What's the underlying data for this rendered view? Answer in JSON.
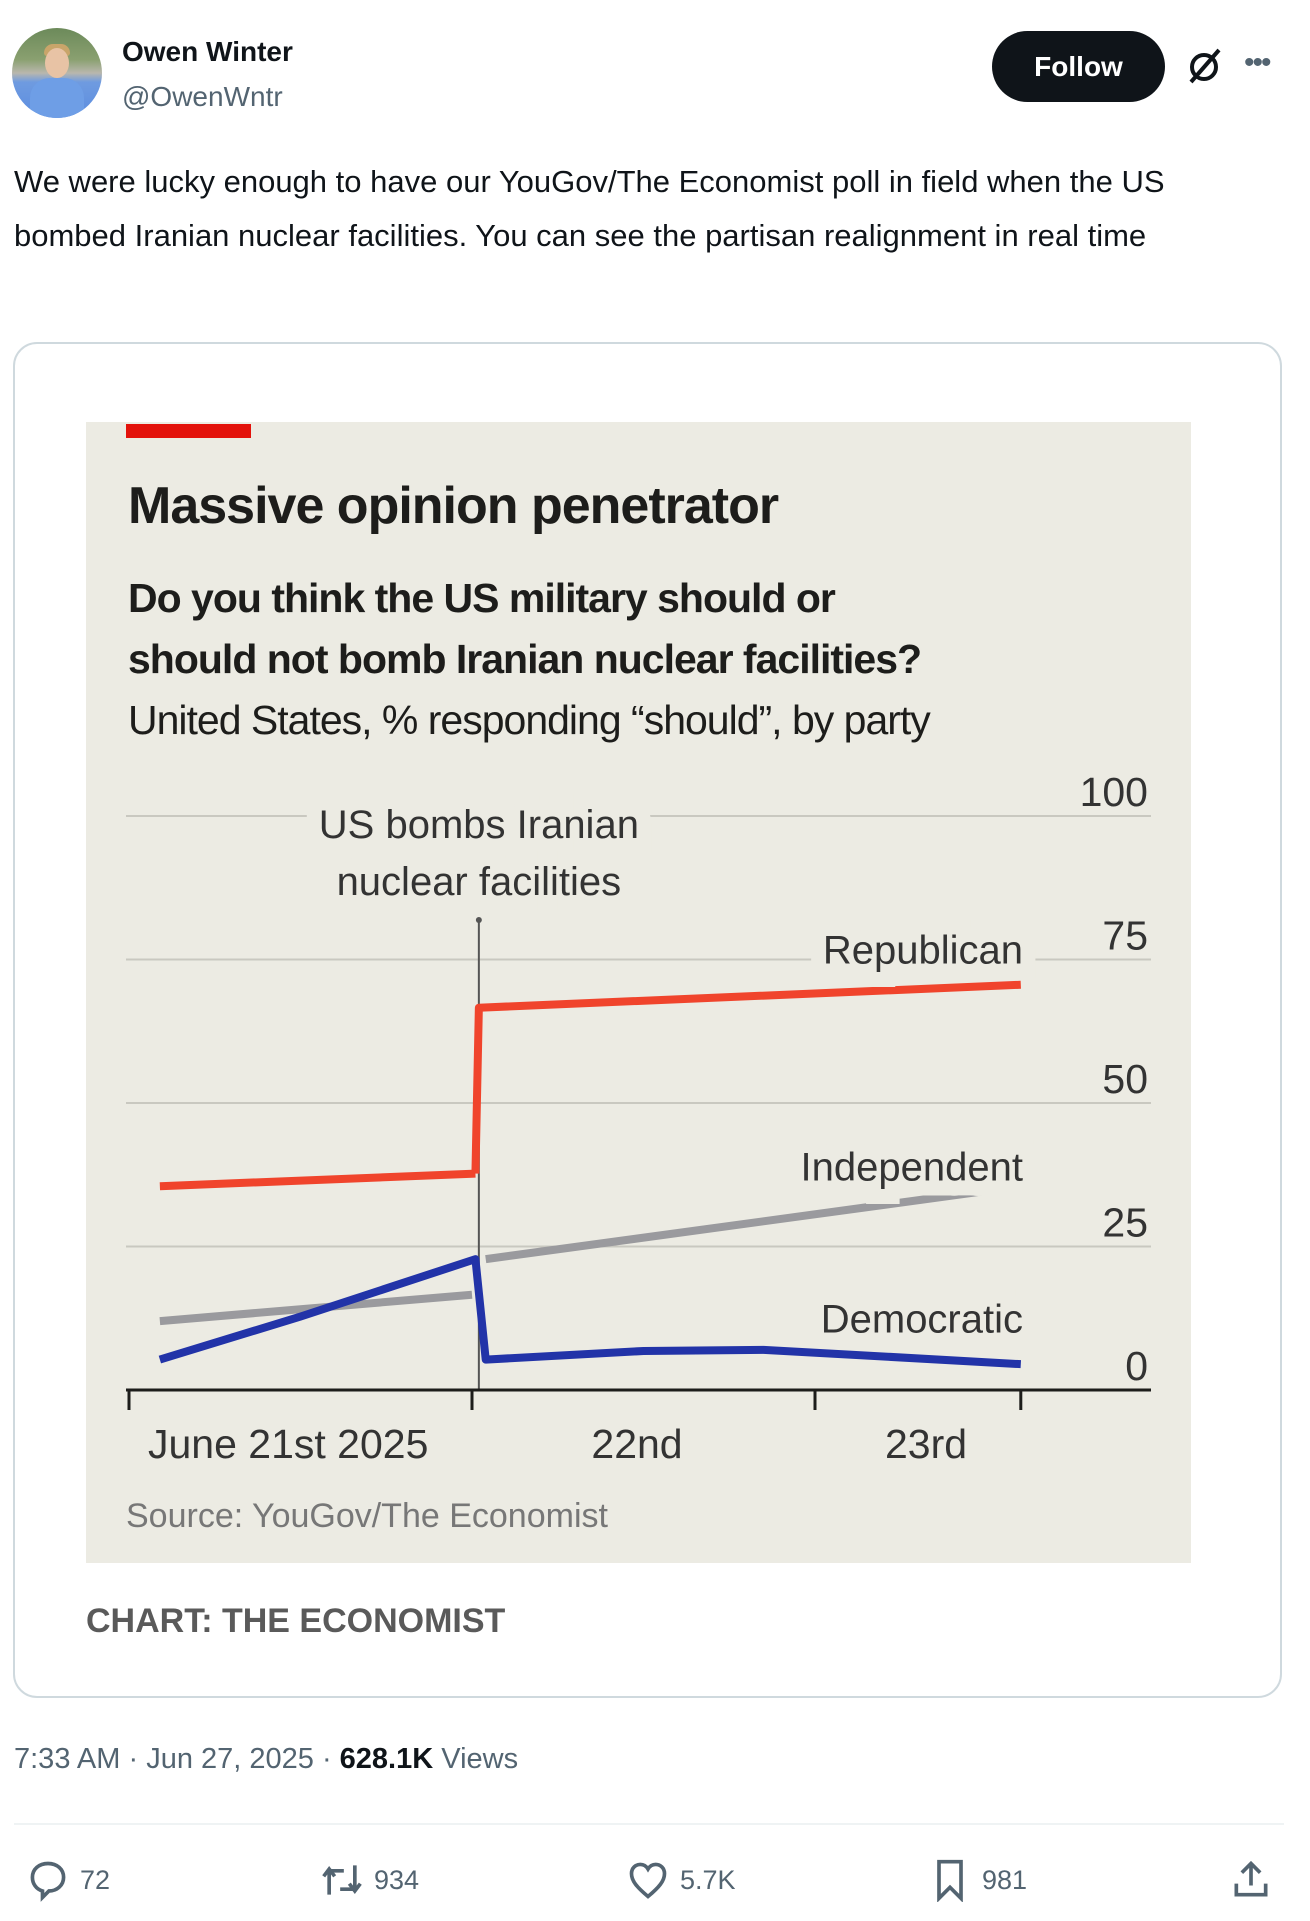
{
  "author": {
    "name": "Owen Winter",
    "handle": "@OwenWntr"
  },
  "header": {
    "follow_label": "Follow"
  },
  "tweet_text": "We were lucky enough to have our YouGov/The Economist poll in field when the US bombed Iranian nuclear facilities. You can see the partisan realignment in real time",
  "chart_data": {
    "type": "line",
    "title": "Massive opinion penetrator",
    "subtitle_bold": [
      "Do you think the US military should or",
      "should not bomb Iranian nuclear facilities?"
    ],
    "subtitle": "United States, % responding “should”, by party",
    "ylim": [
      0,
      100
    ],
    "yticks": [
      0,
      25,
      50,
      75,
      100
    ],
    "ytick_labels": [
      "0",
      "25",
      "50",
      "75",
      "100"
    ],
    "xlabel_ticks": [
      "June 21st 2025",
      "22nd",
      "23rd"
    ],
    "annotation": [
      "US bombs Iranian",
      "nuclear facilities"
    ],
    "event_x": 1.02,
    "grid": true,
    "series": [
      {
        "name": "Republican",
        "color": "#f0442c",
        "segments": [
          [
            [
              0.09,
              35.5
            ],
            [
              1.01,
              37.7
            ]
          ],
          [
            [
              1.01,
              37.7
            ],
            [
              1.02,
              66.6
            ],
            [
              2.6,
              70.6
            ]
          ]
        ]
      },
      {
        "name": "Independent",
        "color": "#9a9a9e",
        "segments": [
          [
            [
              0.09,
              12
            ],
            [
              1.0,
              16.6
            ]
          ],
          [
            [
              1.04,
              22.8
            ],
            [
              2.6,
              35.5
            ]
          ]
        ]
      },
      {
        "name": "Democratic",
        "color": "#2233a8",
        "segments": [
          [
            [
              0.09,
              5.3
            ],
            [
              0.5,
              12.8
            ],
            [
              1.01,
              22.8
            ],
            [
              1.04,
              5.3
            ],
            [
              1.5,
              6.8
            ],
            [
              1.85,
              7
            ],
            [
              2.6,
              4.5
            ]
          ]
        ]
      }
    ],
    "source": "Source: YouGov/The Economist"
  },
  "card_credit": "CHART: THE ECONOMIST",
  "meta": {
    "time": "7:33 AM",
    "date": "Jun 27, 2025",
    "views_count": "628.1K",
    "views_label": "Views",
    "sep": " · "
  },
  "actions": {
    "replies": "72",
    "reposts": "934",
    "likes": "5.7K",
    "bookmarks": "981"
  }
}
